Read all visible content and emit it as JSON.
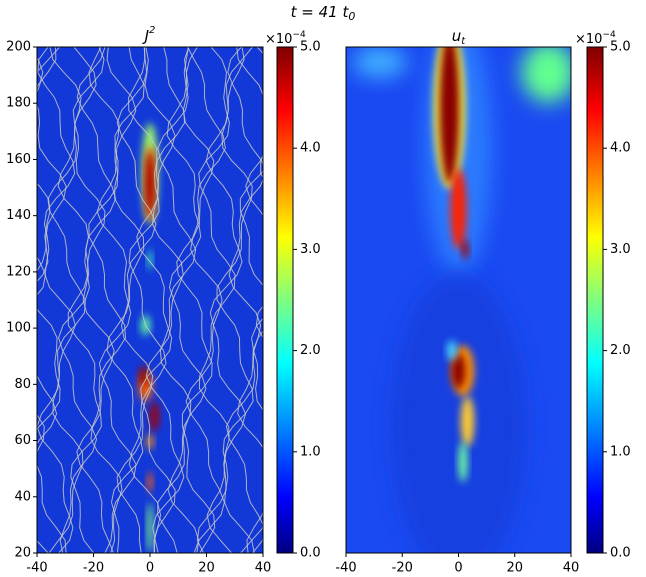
{
  "chart_data": {
    "title": {
      "text": "t = 41 t",
      "sub": "0"
    },
    "panels": [
      {
        "type": "heatmap",
        "title": {
          "text": "J",
          "sup": "2"
        },
        "xlim": [
          -40,
          40
        ],
        "xticks": [
          -40,
          -20,
          0,
          20,
          40
        ],
        "ylim": [
          20,
          200
        ],
        "yticks": [
          20,
          40,
          60,
          80,
          100,
          120,
          140,
          160,
          180,
          200
        ],
        "streamlines": true,
        "colorbar": {
          "colormap": "jet",
          "clim": [
            0,
            5
          ],
          "multiplier": {
            "text": "×10",
            "sup": "−4"
          },
          "ticks": [
            {
              "value": 0,
              "label": "0.0"
            },
            {
              "value": 1,
              "label": "1.0"
            },
            {
              "value": 2,
              "label": "2.0"
            },
            {
              "value": 3,
              "label": "3.0"
            },
            {
              "value": 4,
              "label": "4.0"
            },
            {
              "value": 5,
              "label": "5.0"
            }
          ]
        }
      },
      {
        "type": "heatmap",
        "title": {
          "text": "u",
          "sub": "t"
        },
        "xlim": [
          -40,
          40
        ],
        "xticks": [
          -40,
          -20,
          0,
          20,
          40
        ],
        "streamlines": false,
        "colorbar": {
          "colormap": "jet",
          "clim": [
            0,
            5
          ],
          "multiplier": {
            "text": "×10",
            "sup": "−4"
          },
          "ticks": [
            {
              "value": 0,
              "label": "0.0"
            },
            {
              "value": 1,
              "label": "1.0"
            },
            {
              "value": 2,
              "label": "2.0"
            },
            {
              "value": 3,
              "label": "3.0"
            },
            {
              "value": 4,
              "label": "4.0"
            },
            {
              "value": 5,
              "label": "5.0"
            }
          ]
        }
      }
    ]
  }
}
